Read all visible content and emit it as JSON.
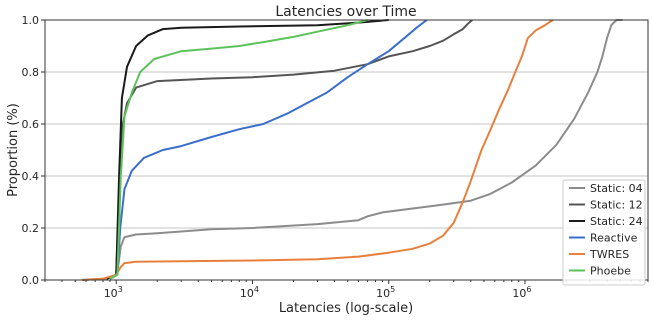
{
  "chart_data": {
    "type": "line",
    "title": "Latencies over Time",
    "xlabel": "Latencies (log-scale)",
    "ylabel": "Proportion (%)",
    "xscale": "log",
    "xlim": [
      300,
      8000000
    ],
    "ylim": [
      0,
      1.0
    ],
    "grid": "horizontal",
    "legend_position": "lower-right",
    "x_ticks": [
      {
        "value": 1000,
        "base": "10",
        "exp": "3"
      },
      {
        "value": 10000,
        "base": "10",
        "exp": "4"
      },
      {
        "value": 100000,
        "base": "10",
        "exp": "5"
      },
      {
        "value": 1000000,
        "base": "10",
        "exp": "6"
      }
    ],
    "y_ticks": [
      "0.0",
      "0.2",
      "0.4",
      "0.6",
      "0.8",
      "1.0"
    ],
    "series": [
      {
        "name": "Static: 04",
        "color": "#8c8c8c",
        "points": [
          [
            560,
            0.0
          ],
          [
            800,
            0.005
          ],
          [
            950,
            0.01
          ],
          [
            1020,
            0.03
          ],
          [
            1080,
            0.13
          ],
          [
            1150,
            0.165
          ],
          [
            1400,
            0.175
          ],
          [
            2000,
            0.18
          ],
          [
            5000,
            0.195
          ],
          [
            10000,
            0.2
          ],
          [
            30000,
            0.215
          ],
          [
            60000,
            0.23
          ],
          [
            70000,
            0.245
          ],
          [
            90000,
            0.26
          ],
          [
            150000,
            0.275
          ],
          [
            250000,
            0.29
          ],
          [
            400000,
            0.305
          ],
          [
            550000,
            0.33
          ],
          [
            800000,
            0.375
          ],
          [
            1200000,
            0.44
          ],
          [
            1700000,
            0.52
          ],
          [
            2300000,
            0.62
          ],
          [
            2900000,
            0.72
          ],
          [
            3400000,
            0.8
          ],
          [
            3700000,
            0.86
          ],
          [
            4000000,
            0.93
          ],
          [
            4300000,
            0.98
          ],
          [
            4700000,
            1.0
          ],
          [
            5200000,
            1.0
          ]
        ]
      },
      {
        "name": "Static: 12",
        "color": "#555555",
        "points": [
          [
            850,
            0.005
          ],
          [
            1000,
            0.02
          ],
          [
            1050,
            0.3
          ],
          [
            1100,
            0.58
          ],
          [
            1200,
            0.68
          ],
          [
            1400,
            0.74
          ],
          [
            2000,
            0.765
          ],
          [
            5000,
            0.775
          ],
          [
            10000,
            0.78
          ],
          [
            20000,
            0.79
          ],
          [
            40000,
            0.805
          ],
          [
            70000,
            0.83
          ],
          [
            100000,
            0.86
          ],
          [
            150000,
            0.88
          ],
          [
            200000,
            0.9
          ],
          [
            250000,
            0.92
          ],
          [
            300000,
            0.945
          ],
          [
            350000,
            0.965
          ],
          [
            380000,
            0.985
          ],
          [
            410000,
            1.0
          ]
        ]
      },
      {
        "name": "Static: 24",
        "color": "#1a1a1a",
        "points": [
          [
            850,
            0.005
          ],
          [
            1000,
            0.02
          ],
          [
            1050,
            0.4
          ],
          [
            1100,
            0.7
          ],
          [
            1200,
            0.82
          ],
          [
            1400,
            0.9
          ],
          [
            1700,
            0.94
          ],
          [
            2200,
            0.965
          ],
          [
            3000,
            0.97
          ],
          [
            8000,
            0.975
          ],
          [
            30000,
            0.98
          ],
          [
            60000,
            0.99
          ],
          [
            100000,
            1.0
          ]
        ]
      },
      {
        "name": "Reactive",
        "color": "#3a6ecc",
        "points": [
          [
            900,
            0.005
          ],
          [
            1020,
            0.02
          ],
          [
            1070,
            0.2
          ],
          [
            1150,
            0.35
          ],
          [
            1300,
            0.42
          ],
          [
            1600,
            0.47
          ],
          [
            2200,
            0.5
          ],
          [
            3000,
            0.515
          ],
          [
            5000,
            0.55
          ],
          [
            8000,
            0.58
          ],
          [
            12000,
            0.6
          ],
          [
            18000,
            0.64
          ],
          [
            25000,
            0.68
          ],
          [
            35000,
            0.72
          ],
          [
            50000,
            0.78
          ],
          [
            70000,
            0.83
          ],
          [
            100000,
            0.88
          ],
          [
            130000,
            0.93
          ],
          [
            160000,
            0.97
          ],
          [
            190000,
            1.0
          ]
        ]
      },
      {
        "name": "TWRES",
        "color": "#e8803c",
        "points": [
          [
            560,
            0.0
          ],
          [
            800,
            0.005
          ],
          [
            1000,
            0.02
          ],
          [
            1080,
            0.05
          ],
          [
            1150,
            0.065
          ],
          [
            1400,
            0.07
          ],
          [
            3000,
            0.072
          ],
          [
            10000,
            0.075
          ],
          [
            30000,
            0.08
          ],
          [
            60000,
            0.09
          ],
          [
            100000,
            0.105
          ],
          [
            150000,
            0.12
          ],
          [
            200000,
            0.14
          ],
          [
            250000,
            0.17
          ],
          [
            300000,
            0.22
          ],
          [
            350000,
            0.3
          ],
          [
            400000,
            0.38
          ],
          [
            480000,
            0.5
          ],
          [
            560000,
            0.58
          ],
          [
            650000,
            0.66
          ],
          [
            750000,
            0.73
          ],
          [
            850000,
            0.8
          ],
          [
            950000,
            0.86
          ],
          [
            1050000,
            0.93
          ],
          [
            1200000,
            0.96
          ],
          [
            1400000,
            0.98
          ],
          [
            1600000,
            1.0
          ]
        ]
      },
      {
        "name": "Phoebe",
        "color": "#5cc35c",
        "points": [
          [
            900,
            0.005
          ],
          [
            1020,
            0.02
          ],
          [
            1080,
            0.4
          ],
          [
            1150,
            0.63
          ],
          [
            1300,
            0.72
          ],
          [
            1500,
            0.8
          ],
          [
            1900,
            0.85
          ],
          [
            3000,
            0.88
          ],
          [
            5000,
            0.89
          ],
          [
            8000,
            0.9
          ],
          [
            12000,
            0.915
          ],
          [
            20000,
            0.935
          ],
          [
            30000,
            0.955
          ],
          [
            50000,
            0.98
          ],
          [
            70000,
            1.0
          ]
        ]
      }
    ]
  }
}
